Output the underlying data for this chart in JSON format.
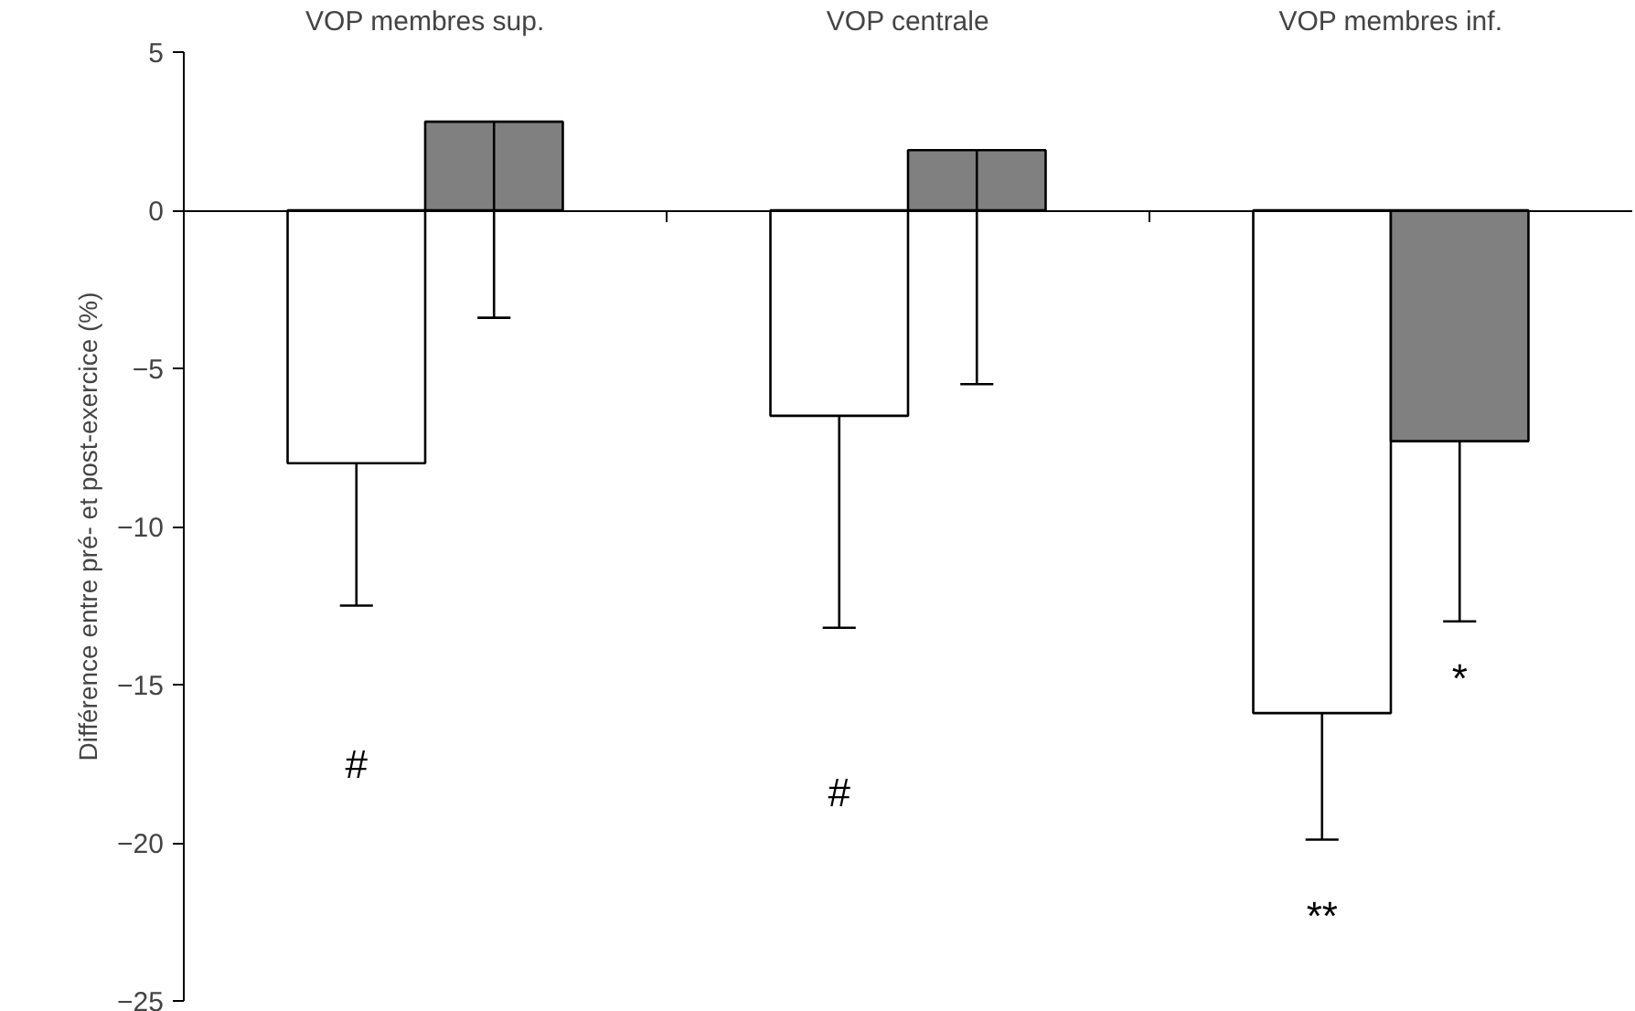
{
  "chart_data": {
    "type": "bar",
    "ylabel": "Différence entre pré- et post-exercice (%)",
    "categories": [
      "VOP membres sup.",
      "VOP centrale",
      "VOP membres inf."
    ],
    "series": [
      {
        "color": "#ffffff",
        "values": [
          -8.0,
          -6.5,
          -15.9
        ],
        "errors": [
          [
            -12.5,
            -8.0
          ],
          [
            -13.2,
            -6.5
          ],
          [
            -19.9,
            -15.9
          ]
        ]
      },
      {
        "color": "#808080",
        "values": [
          2.8,
          1.9,
          -7.3
        ],
        "errors": [
          [
            -3.4,
            2.8
          ],
          [
            -5.5,
            1.9
          ],
          [
            -13.0,
            -7.3
          ]
        ]
      }
    ],
    "ylim": [
      -25,
      5
    ],
    "yticks": [
      -25,
      -20,
      -15,
      -10,
      -5,
      0,
      5
    ],
    "annotations": [
      "#",
      "#",
      "**",
      "*"
    ]
  }
}
